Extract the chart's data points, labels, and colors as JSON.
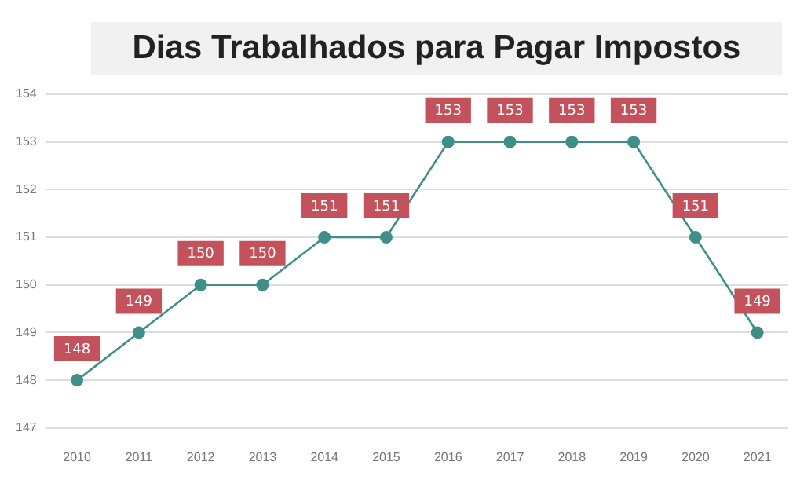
{
  "chart_data": {
    "type": "line",
    "title": "Dias Trabalhados para Pagar Impostos",
    "categories": [
      "2010",
      "2011",
      "2012",
      "2013",
      "2014",
      "2015",
      "2016",
      "2017",
      "2018",
      "2019",
      "2020",
      "2021"
    ],
    "series": [
      {
        "color": "#3f8f88",
        "values": [
          148,
          149,
          150,
          150,
          151,
          151,
          153,
          153,
          153,
          153,
          151,
          149
        ]
      }
    ],
    "ylim": [
      147,
      154
    ],
    "yticks": [
      147,
      148,
      149,
      150,
      151,
      152,
      153,
      154
    ],
    "grid": "y",
    "legend": false,
    "marker": "circle",
    "line_style": "solid",
    "data_labels": true
  }
}
